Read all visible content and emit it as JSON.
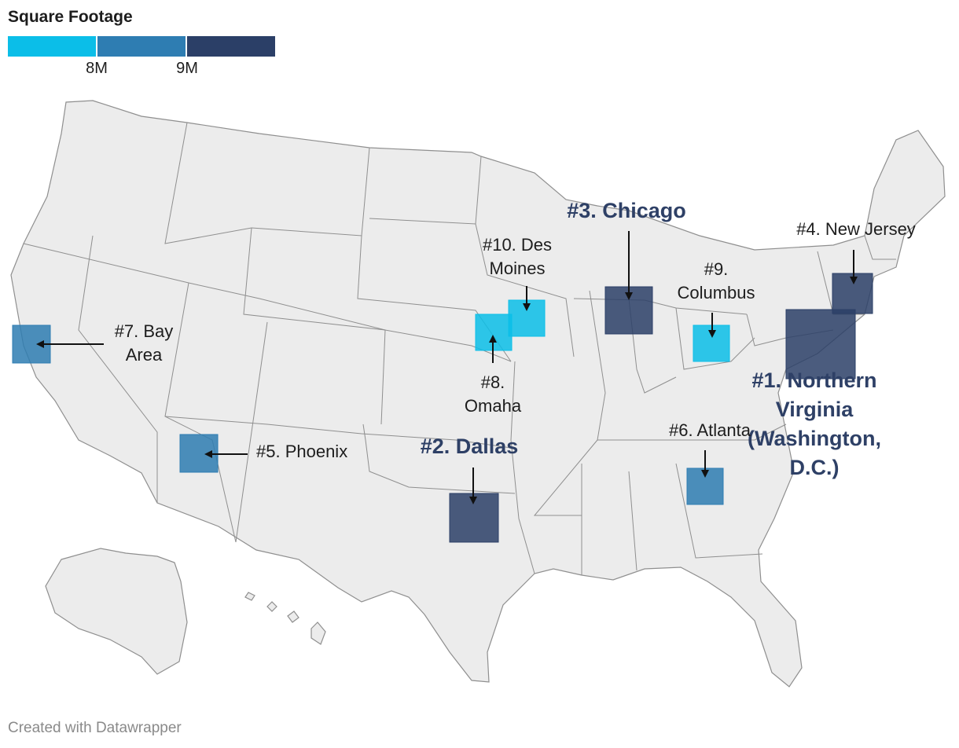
{
  "legend": {
    "title": "Square Footage",
    "colors": [
      "#0bbee8",
      "#2e7db2",
      "#2b3f67"
    ],
    "ticks": [
      "8M",
      "9M"
    ]
  },
  "footer": "Created with Datawrapper",
  "map_colors": {
    "land": "#ececec",
    "border": "#8f8f8f"
  },
  "markers": [
    {
      "rank": 1,
      "name": "Northern Virginia (Washington, D.C.)",
      "label": [
        "#1. Northern",
        "Virginia",
        "(Washington,",
        "D.C.)"
      ],
      "color": "#2b3f67",
      "style": "major"
    },
    {
      "rank": 2,
      "name": "Dallas",
      "label": [
        "#2. Dallas"
      ],
      "color": "#2b3f67",
      "style": "major"
    },
    {
      "rank": 3,
      "name": "Chicago",
      "label": [
        "#3. Chicago"
      ],
      "color": "#2b3f67",
      "style": "major"
    },
    {
      "rank": 4,
      "name": "New Jersey",
      "label": [
        "#4. New Jersey"
      ],
      "color": "#2b3f67",
      "style": "minor"
    },
    {
      "rank": 5,
      "name": "Phoenix",
      "label": [
        "#5. Phoenix"
      ],
      "color": "#2e7db2",
      "style": "minor"
    },
    {
      "rank": 6,
      "name": "Atlanta",
      "label": [
        "#6. Atlanta"
      ],
      "color": "#2e7db2",
      "style": "minor"
    },
    {
      "rank": 7,
      "name": "Bay Area",
      "label": [
        "#7. Bay",
        "Area"
      ],
      "color": "#2e7db2",
      "style": "minor"
    },
    {
      "rank": 8,
      "name": "Omaha",
      "label": [
        "#8.",
        "Omaha"
      ],
      "color": "#0bbee8",
      "style": "minor"
    },
    {
      "rank": 9,
      "name": "Columbus",
      "label": [
        "#9.",
        "Columbus"
      ],
      "color": "#0bbee8",
      "style": "minor"
    },
    {
      "rank": 10,
      "name": "Des Moines",
      "label": [
        "#10. Des",
        "Moines"
      ],
      "color": "#0bbee8",
      "style": "minor"
    }
  ]
}
